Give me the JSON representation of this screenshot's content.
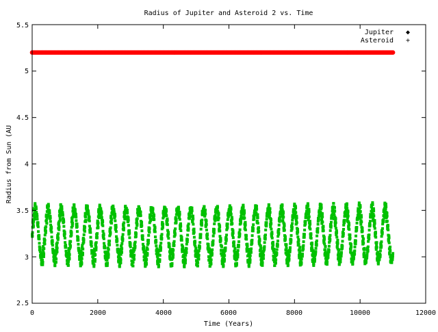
{
  "chart_data": {
    "type": "scatter",
    "title": "Radius of Jupiter and Asteroid 2 vs. Time",
    "xlabel": "Time (Years)",
    "ylabel": "Radius from Sun (AU",
    "xlim": [
      0,
      12000
    ],
    "ylim": [
      2.5,
      5.5
    ],
    "x_ticks": [
      "0",
      "2000",
      "4000",
      "6000",
      "8000",
      "10000",
      "12000"
    ],
    "y_ticks": [
      "2.5",
      "3",
      "3.5",
      "4",
      "4.5",
      "5",
      "5.5"
    ],
    "grid": false,
    "legend_position": "top-right",
    "series": [
      {
        "name": "Jupiter",
        "marker": "◆",
        "color": "#ff0000",
        "x_range": [
          0,
          11000
        ],
        "value": 5.2
      },
      {
        "name": "Asteroid",
        "marker": "+",
        "color": "#00c000",
        "x_range": [
          0,
          11000
        ],
        "mean": 3.24,
        "amplitude": 0.3,
        "oscillation_period_years": 395
      }
    ]
  }
}
